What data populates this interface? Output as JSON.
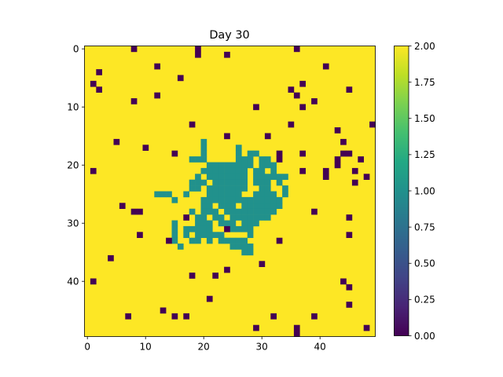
{
  "chart_data": {
    "type": "heatmap",
    "title": "Day 30",
    "xlabel": "",
    "ylabel": "",
    "grid_size": [
      50,
      50
    ],
    "x_ticks": [
      0,
      10,
      20,
      30,
      40
    ],
    "y_ticks": [
      0,
      10,
      20,
      30,
      40
    ],
    "colormap": "viridis",
    "color_range": [
      0,
      2
    ],
    "colorbar_ticks": [
      "0.00",
      "0.25",
      "0.50",
      "0.75",
      "1.00",
      "1.25",
      "1.50",
      "1.75",
      "2.00"
    ],
    "legend": "colorbar-right",
    "default_value": 2,
    "colors": {
      "0": "#440154",
      "1": "#21918c",
      "2": "#fde725"
    },
    "zero_cells": [
      [
        0,
        8
      ],
      [
        0,
        19
      ],
      [
        0,
        36
      ],
      [
        1,
        19
      ],
      [
        1,
        24
      ],
      [
        3,
        12
      ],
      [
        3,
        41
      ],
      [
        4,
        2
      ],
      [
        5,
        16
      ],
      [
        6,
        1
      ],
      [
        6,
        37
      ],
      [
        7,
        2
      ],
      [
        7,
        35
      ],
      [
        7,
        45
      ],
      [
        8,
        36
      ],
      [
        9,
        8
      ],
      [
        9,
        39
      ],
      [
        10,
        29
      ],
      [
        10,
        37
      ],
      [
        8,
        12
      ],
      [
        13,
        18
      ],
      [
        13,
        35
      ],
      [
        13,
        49
      ],
      [
        14,
        43
      ],
      [
        15,
        24
      ],
      [
        15,
        31
      ],
      [
        16,
        5
      ],
      [
        16,
        44
      ],
      [
        17,
        10
      ],
      [
        18,
        15
      ],
      [
        18,
        33
      ],
      [
        18,
        37
      ],
      [
        18,
        44
      ],
      [
        18,
        45
      ],
      [
        19,
        33
      ],
      [
        19,
        43
      ],
      [
        19,
        47
      ],
      [
        20,
        43
      ],
      [
        21,
        1
      ],
      [
        21,
        37
      ],
      [
        21,
        41
      ],
      [
        21,
        46
      ],
      [
        22,
        41
      ],
      [
        22,
        48
      ],
      [
        23,
        46
      ],
      [
        27,
        6
      ],
      [
        28,
        8
      ],
      [
        28,
        9
      ],
      [
        28,
        39
      ],
      [
        29,
        17
      ],
      [
        29,
        45
      ],
      [
        31,
        24
      ],
      [
        32,
        9
      ],
      [
        32,
        45
      ],
      [
        33,
        14
      ],
      [
        33,
        33
      ],
      [
        36,
        4
      ],
      [
        37,
        30
      ],
      [
        38,
        24
      ],
      [
        39,
        18
      ],
      [
        39,
        22
      ],
      [
        40,
        1
      ],
      [
        40,
        44
      ],
      [
        41,
        45
      ],
      [
        43,
        21
      ],
      [
        44,
        45
      ],
      [
        45,
        13
      ],
      [
        46,
        7
      ],
      [
        46,
        15
      ],
      [
        46,
        17
      ],
      [
        46,
        32
      ],
      [
        48,
        29
      ],
      [
        48,
        36
      ],
      [
        48,
        48
      ],
      [
        49,
        36
      ],
      [
        46,
        39
      ]
    ],
    "one_cells": [
      [
        16,
        20
      ],
      [
        17,
        20
      ],
      [
        17,
        26
      ],
      [
        18,
        20
      ],
      [
        18,
        26
      ],
      [
        18,
        28
      ],
      [
        18,
        29
      ],
      [
        19,
        18
      ],
      [
        19,
        19
      ],
      [
        19,
        20
      ],
      [
        19,
        26
      ],
      [
        19,
        27
      ],
      [
        19,
        28
      ],
      [
        19,
        30
      ],
      [
        19,
        31
      ],
      [
        20,
        21
      ],
      [
        20,
        22
      ],
      [
        20,
        23
      ],
      [
        20,
        24
      ],
      [
        20,
        25
      ],
      [
        20,
        26
      ],
      [
        20,
        27
      ],
      [
        20,
        28
      ],
      [
        20,
        30
      ],
      [
        20,
        31
      ],
      [
        20,
        32
      ],
      [
        21,
        20
      ],
      [
        21,
        21
      ],
      [
        21,
        22
      ],
      [
        21,
        23
      ],
      [
        21,
        24
      ],
      [
        21,
        25
      ],
      [
        21,
        26
      ],
      [
        21,
        27
      ],
      [
        21,
        29
      ],
      [
        21,
        30
      ],
      [
        21,
        32
      ],
      [
        22,
        19
      ],
      [
        22,
        21
      ],
      [
        22,
        22
      ],
      [
        22,
        23
      ],
      [
        22,
        24
      ],
      [
        22,
        25
      ],
      [
        22,
        26
      ],
      [
        22,
        27
      ],
      [
        22,
        29
      ],
      [
        22,
        30
      ],
      [
        22,
        31
      ],
      [
        22,
        32
      ],
      [
        22,
        33
      ],
      [
        22,
        34
      ],
      [
        23,
        18
      ],
      [
        23,
        19
      ],
      [
        23,
        20
      ],
      [
        23,
        22
      ],
      [
        23,
        23
      ],
      [
        23,
        24
      ],
      [
        23,
        25
      ],
      [
        23,
        26
      ],
      [
        23,
        27
      ],
      [
        23,
        29
      ],
      [
        23,
        30
      ],
      [
        23,
        31
      ],
      [
        23,
        33
      ],
      [
        24,
        18
      ],
      [
        24,
        19
      ],
      [
        24,
        21
      ],
      [
        24,
        22
      ],
      [
        24,
        23
      ],
      [
        24,
        24
      ],
      [
        24,
        25
      ],
      [
        24,
        26
      ],
      [
        24,
        27
      ],
      [
        24,
        30
      ],
      [
        24,
        31
      ],
      [
        24,
        34
      ],
      [
        25,
        12
      ],
      [
        25,
        13
      ],
      [
        25,
        14
      ],
      [
        25,
        17
      ],
      [
        25,
        21
      ],
      [
        25,
        22
      ],
      [
        25,
        23
      ],
      [
        25,
        24
      ],
      [
        25,
        25
      ],
      [
        25,
        26
      ],
      [
        25,
        29
      ],
      [
        25,
        30
      ],
      [
        25,
        31
      ],
      [
        25,
        32
      ],
      [
        25,
        34
      ],
      [
        26,
        15
      ],
      [
        26,
        20
      ],
      [
        26,
        21
      ],
      [
        26,
        22
      ],
      [
        26,
        23
      ],
      [
        26,
        24
      ],
      [
        26,
        25
      ],
      [
        26,
        26
      ],
      [
        26,
        27
      ],
      [
        26,
        28
      ],
      [
        26,
        29
      ],
      [
        26,
        30
      ],
      [
        26,
        31
      ],
      [
        26,
        32
      ],
      [
        26,
        33
      ],
      [
        27,
        20
      ],
      [
        27,
        21
      ],
      [
        27,
        23
      ],
      [
        27,
        24
      ],
      [
        27,
        25
      ],
      [
        27,
        27
      ],
      [
        27,
        28
      ],
      [
        27,
        29
      ],
      [
        27,
        30
      ],
      [
        27,
        31
      ],
      [
        27,
        32
      ],
      [
        27,
        33
      ],
      [
        28,
        18
      ],
      [
        28,
        20
      ],
      [
        28,
        21
      ],
      [
        28,
        22
      ],
      [
        28,
        24
      ],
      [
        28,
        25
      ],
      [
        28,
        26
      ],
      [
        28,
        27
      ],
      [
        28,
        28
      ],
      [
        28,
        29
      ],
      [
        28,
        30
      ],
      [
        28,
        31
      ],
      [
        28,
        32
      ],
      [
        29,
        19
      ],
      [
        29,
        20
      ],
      [
        29,
        22
      ],
      [
        29,
        23
      ],
      [
        29,
        25
      ],
      [
        29,
        26
      ],
      [
        29,
        27
      ],
      [
        29,
        28
      ],
      [
        29,
        29
      ],
      [
        29,
        30
      ],
      [
        29,
        31
      ],
      [
        30,
        15
      ],
      [
        30,
        19
      ],
      [
        30,
        20
      ],
      [
        30,
        21
      ],
      [
        30,
        23
      ],
      [
        30,
        24
      ],
      [
        30,
        25
      ],
      [
        30,
        27
      ],
      [
        30,
        28
      ],
      [
        30,
        29
      ],
      [
        31,
        15
      ],
      [
        31,
        17
      ],
      [
        31,
        18
      ],
      [
        31,
        19
      ],
      [
        31,
        20
      ],
      [
        31,
        21
      ],
      [
        31,
        25
      ],
      [
        31,
        26
      ],
      [
        31,
        27
      ],
      [
        31,
        28
      ],
      [
        32,
        15
      ],
      [
        32,
        17
      ],
      [
        32,
        19
      ],
      [
        32,
        20
      ],
      [
        32,
        21
      ],
      [
        32,
        22
      ],
      [
        32,
        23
      ],
      [
        32,
        28
      ],
      [
        33,
        15
      ],
      [
        33,
        18
      ],
      [
        33,
        19
      ],
      [
        33,
        21
      ],
      [
        33,
        23
      ],
      [
        33,
        24
      ],
      [
        33,
        25
      ],
      [
        33,
        26
      ],
      [
        33,
        27
      ],
      [
        34,
        16
      ],
      [
        34,
        25
      ],
      [
        34,
        26
      ],
      [
        34,
        27
      ],
      [
        34,
        28
      ],
      [
        35,
        27
      ],
      [
        35,
        28
      ]
    ]
  }
}
